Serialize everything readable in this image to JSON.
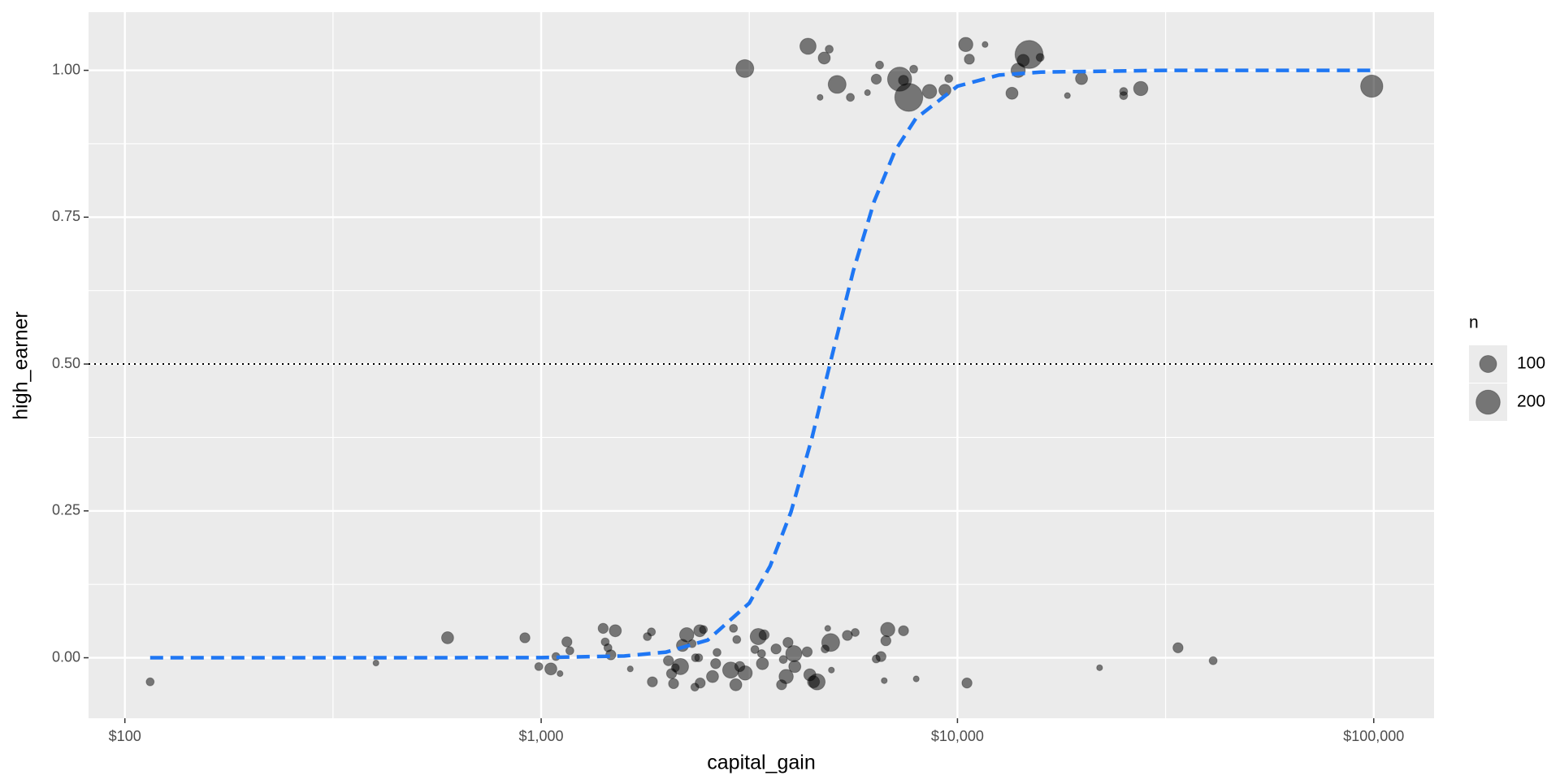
{
  "chart_data": {
    "type": "scatter",
    "xlabel": "capital_gain",
    "ylabel": "high_earner",
    "x_scale": "log",
    "grid": true,
    "xlim": [
      81.8,
      139600
    ],
    "ylim": [
      -0.103,
      1.099
    ],
    "xticks": [
      {
        "value": 100,
        "label": "$100"
      },
      {
        "value": 1000,
        "label": "$1,000"
      },
      {
        "value": 10000,
        "label": "$10,000"
      },
      {
        "value": 100000,
        "label": "$100,000"
      }
    ],
    "yticks": [
      {
        "value": 0,
        "label": "0.00"
      },
      {
        "value": 0.25,
        "label": "0.25"
      },
      {
        "value": 0.5,
        "label": "0.50"
      },
      {
        "value": 0.75,
        "label": "0.75"
      },
      {
        "value": 1,
        "label": "1.00"
      }
    ],
    "x_minor_breaks": [
      316.2,
      3162,
      31623
    ],
    "y_minor_breaks": [
      0.125,
      0.375,
      0.625,
      0.875
    ],
    "points": {
      "color": "#000000",
      "alpha": 0.5,
      "x": [
        3085,
        4375,
        4786,
        4920,
        5140,
        4677,
        5530,
        6080,
        6383,
        6500,
        7262,
        7640,
        7420,
        7850,
        8570,
        9330,
        9530,
        10470,
        10680,
        11650,
        13520,
        13990,
        14390,
        14860,
        15800,
        18370,
        19860,
        25070,
        25070,
        27560,
        98900,
        115,
        401,
        596,
        914,
        987,
        1055,
        1085,
        1110,
        1153,
        1172,
        1409,
        1425,
        1447,
        1470,
        1507,
        1637,
        1799,
        1840,
        1850,
        2022,
        2057,
        2080,
        2100,
        2161,
        2185,
        2237,
        2305,
        2348,
        2404,
        2453,
        2340,
        2410,
        2390,
        2580,
        2625,
        2645,
        2853,
        2897,
        2950,
        2935,
        3000,
        3090,
        3262,
        3323,
        3400,
        3432,
        3384,
        3666,
        3780,
        3816,
        3877,
        3917,
        4045,
        4067,
        4355,
        4420,
        4510,
        4600,
        4810,
        4880,
        4960,
        4980,
        5440,
        5680,
        6380,
        6550,
        6730,
        6800,
        6670,
        7420,
        7960,
        10540,
        21950,
        33870,
        41130
      ],
      "y": [
        1.003,
        1.041,
        1.021,
        1.036,
        0.976,
        0.954,
        0.954,
        0.962,
        0.985,
        1.009,
        0.985,
        0.954,
        0.983,
        1.002,
        0.964,
        0.966,
        0.986,
        1.044,
        1.019,
        1.044,
        0.961,
        1.0,
        1.017,
        1.027,
        1.022,
        0.957,
        0.986,
        0.964,
        0.957,
        0.969,
        0.973,
        -0.041,
        -0.009,
        0.034,
        0.034,
        -0.015,
        -0.019,
        0.002,
        -0.027,
        0.027,
        0.012,
        0.05,
        0.027,
        0.017,
        0.005,
        0.046,
        -0.019,
        0.036,
        0.044,
        -0.041,
        -0.005,
        -0.027,
        -0.044,
        -0.017,
        -0.015,
        0.021,
        0.039,
        0.024,
        0,
        0.046,
        0.048,
        -0.05,
        -0.043,
        0,
        -0.032,
        -0.01,
        0.009,
        -0.021,
        0.05,
        0.031,
        -0.046,
        -0.015,
        -0.026,
        0.014,
        0.036,
        -0.01,
        0.039,
        0.007,
        0.015,
        -0.046,
        -0.003,
        -0.032,
        0.026,
        0.007,
        -0.015,
        0.01,
        -0.029,
        -0.041,
        -0.041,
        0.015,
        0.05,
        0.026,
        -0.021,
        0.038,
        0.043,
        -0.002,
        0.002,
        0.029,
        0.048,
        -0.039,
        0.046,
        -0.036,
        -0.043,
        -0.017,
        0.017,
        -0.005
      ],
      "size": [
        110,
        90,
        50,
        22,
        110,
        12,
        22,
        12,
        35,
        22,
        200,
        270,
        35,
        22,
        70,
        50,
        22,
        70,
        35,
        12,
        50,
        70,
        50,
        270,
        22,
        12,
        50,
        22,
        22,
        70,
        170,
        22,
        12,
        50,
        35,
        22,
        50,
        22,
        12,
        35,
        22,
        35,
        22,
        22,
        35,
        50,
        12,
        22,
        22,
        35,
        35,
        35,
        35,
        22,
        90,
        50,
        70,
        22,
        22,
        50,
        22,
        22,
        35,
        22,
        50,
        35,
        22,
        90,
        22,
        22,
        50,
        35,
        70,
        22,
        90,
        50,
        35,
        22,
        35,
        35,
        22,
        70,
        35,
        90,
        50,
        35,
        50,
        50,
        90,
        22,
        12,
        110,
        12,
        35,
        22,
        22,
        35,
        35,
        70,
        12,
        35,
        12,
        35,
        12,
        35,
        22
      ]
    },
    "curve": {
      "color": "#1f77f4",
      "dash": "dashed",
      "x": [
        115,
        468,
        1000,
        1585,
        1995,
        2512,
        3162,
        3548,
        3981,
        4467,
        5012,
        5623,
        6310,
        7079,
        7943,
        10000,
        12589,
        15849,
        31623,
        100000
      ],
      "y": [
        0,
        0,
        0.0003,
        0.003,
        0.0096,
        0.03,
        0.093,
        0.156,
        0.248,
        0.373,
        0.518,
        0.659,
        0.777,
        0.863,
        0.918,
        0.973,
        0.992,
        0.997,
        1.0,
        1.0
      ]
    },
    "hline": {
      "value": 0.5,
      "style": "dotted",
      "color": "#000000"
    },
    "size_legend": {
      "title": "n",
      "breaks": [
        100,
        200
      ]
    }
  }
}
